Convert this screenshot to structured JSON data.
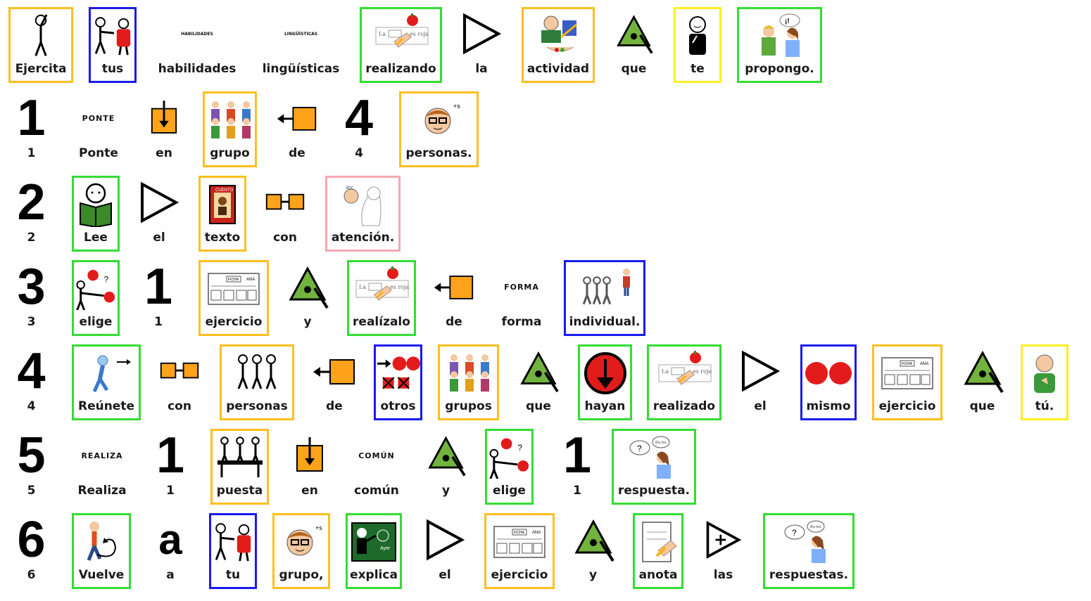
{
  "colors": {
    "noun": "#ffbf1f",
    "verb": "#33dd33",
    "pronoun": "#1a1aee",
    "person": "#ffee22",
    "misc": "#f6a9b1"
  },
  "rows": [
    {
      "words": [
        {
          "label": "Ejercita",
          "icon": "stretching-person-icon",
          "border": "noun"
        },
        {
          "label": "tus",
          "icon": "giving-to-person-icon",
          "border": "pronoun"
        },
        {
          "label": "habilidades",
          "icon": "habilidades-text-icon",
          "small_text": "HABILIDADES"
        },
        {
          "label": "lingüísticas",
          "icon": "linguisticas-text-icon",
          "small_text": "LINGÜÍSTICAS"
        },
        {
          "label": "realizando",
          "icon": "writing-on-paper-icon",
          "border": "verb"
        },
        {
          "label": "la",
          "icon": "triangle-outline-icon"
        },
        {
          "label": "actividad",
          "icon": "activity-icon",
          "border": "noun"
        },
        {
          "label": "que",
          "icon": "green-triangle-icon"
        },
        {
          "label": "te",
          "icon": "person-pointing-self-icon",
          "border": "person"
        },
        {
          "label": "propongo.",
          "icon": "people-talking-idea-icon",
          "border": "verb"
        }
      ]
    },
    {
      "words": [
        {
          "label": "1",
          "icon": "number-glyph",
          "glyph": "1"
        },
        {
          "label": "Ponte",
          "icon": "ponte-text-icon",
          "small_text": "PONTE"
        },
        {
          "label": "en",
          "icon": "arrow-into-box-icon"
        },
        {
          "label": "grupo",
          "icon": "group-of-people-icon",
          "border": "noun"
        },
        {
          "label": "de",
          "icon": "arrow-from-box-icon"
        },
        {
          "label": "4",
          "icon": "number-glyph",
          "glyph": "4"
        },
        {
          "label": "personas.",
          "icon": "person-face-plural-icon",
          "border": "noun"
        }
      ]
    },
    {
      "words": [
        {
          "label": "2",
          "icon": "number-glyph",
          "glyph": "2"
        },
        {
          "label": "Lee",
          "icon": "reading-book-icon",
          "border": "verb"
        },
        {
          "label": "el",
          "icon": "triangle-outline-icon"
        },
        {
          "label": "texto",
          "icon": "book-cover-icon",
          "border": "noun"
        },
        {
          "label": "con",
          "icon": "linked-boxes-icon"
        },
        {
          "label": "atención.",
          "icon": "attention-person-icon",
          "border": "misc"
        }
      ]
    },
    {
      "words": [
        {
          "label": "3",
          "icon": "number-glyph",
          "glyph": "3"
        },
        {
          "label": "elige",
          "icon": "choose-balls-icon",
          "border": "verb"
        },
        {
          "label": "1",
          "icon": "number-glyph",
          "glyph": "1"
        },
        {
          "label": "ejercicio",
          "icon": "worksheet-icon",
          "border": "noun"
        },
        {
          "label": "y",
          "icon": "green-triangle-icon"
        },
        {
          "label": "realízalo",
          "icon": "writing-on-paper-icon",
          "border": "verb"
        },
        {
          "label": "de",
          "icon": "arrow-from-box-icon"
        },
        {
          "label": "forma",
          "icon": "forma-text-icon",
          "small_text": "FORMA"
        },
        {
          "label": "individual.",
          "icon": "individual-person-icon",
          "border": "pronoun"
        }
      ]
    },
    {
      "words": [
        {
          "label": "4",
          "icon": "number-glyph",
          "glyph": "4"
        },
        {
          "label": "Reúnete",
          "icon": "walking-person-icon",
          "border": "verb"
        },
        {
          "label": "con",
          "icon": "linked-boxes-icon"
        },
        {
          "label": "personas",
          "icon": "three-people-icon",
          "border": "noun"
        },
        {
          "label": "de",
          "icon": "arrow-from-box-icon"
        },
        {
          "label": "otros",
          "icon": "other-circles-icon",
          "border": "pronoun"
        },
        {
          "label": "grupos",
          "icon": "group-of-people-icon",
          "border": "noun"
        },
        {
          "label": "que",
          "icon": "green-triangle-icon"
        },
        {
          "label": "hayan",
          "icon": "red-down-arrow-icon",
          "border": "verb"
        },
        {
          "label": "realizado",
          "icon": "writing-on-paper-icon",
          "border": "verb"
        },
        {
          "label": "el",
          "icon": "triangle-outline-icon"
        },
        {
          "label": "mismo",
          "icon": "two-red-circles-icon",
          "border": "pronoun"
        },
        {
          "label": "ejercicio",
          "icon": "worksheet-icon",
          "border": "noun"
        },
        {
          "label": "que",
          "icon": "green-triangle-icon"
        },
        {
          "label": "tú.",
          "icon": "person-you-icon",
          "border": "person"
        }
      ]
    },
    {
      "words": [
        {
          "label": "5",
          "icon": "number-glyph",
          "glyph": "5"
        },
        {
          "label": "Realiza",
          "icon": "realiza-text-icon",
          "small_text": "REALIZA"
        },
        {
          "label": "1",
          "icon": "number-glyph",
          "glyph": "1"
        },
        {
          "label": "puesta",
          "icon": "people-at-table-icon",
          "border": "noun"
        },
        {
          "label": "en",
          "icon": "arrow-into-box-icon"
        },
        {
          "label": "común",
          "icon": "comun-text-icon",
          "small_text": "COMÚN"
        },
        {
          "label": "y",
          "icon": "green-triangle-icon"
        },
        {
          "label": "elige",
          "icon": "choose-balls-icon",
          "border": "verb"
        },
        {
          "label": "1",
          "icon": "number-glyph",
          "glyph": "1"
        },
        {
          "label": "respuesta.",
          "icon": "answer-bubble-icon",
          "border": "verb"
        }
      ]
    },
    {
      "words": [
        {
          "label": "6",
          "icon": "number-glyph",
          "glyph": "6"
        },
        {
          "label": "Vuelve",
          "icon": "return-person-icon",
          "border": "verb"
        },
        {
          "label": "a",
          "icon": "letter-glyph",
          "glyph": "a"
        },
        {
          "label": "tu",
          "icon": "giving-to-person-icon",
          "border": "pronoun"
        },
        {
          "label": "grupo,",
          "icon": "person-face-plural-icon",
          "border": "noun"
        },
        {
          "label": "explica",
          "icon": "blackboard-teacher-icon",
          "border": "verb"
        },
        {
          "label": "el",
          "icon": "triangle-outline-icon"
        },
        {
          "label": "ejercicio",
          "icon": "worksheet-icon",
          "border": "noun"
        },
        {
          "label": "y",
          "icon": "green-triangle-icon"
        },
        {
          "label": "anota",
          "icon": "note-writing-icon",
          "border": "verb"
        },
        {
          "label": "las",
          "icon": "plus-triangle-icon"
        },
        {
          "label": "respuestas.",
          "icon": "answer-bubble-icon",
          "border": "verb"
        }
      ]
    }
  ]
}
